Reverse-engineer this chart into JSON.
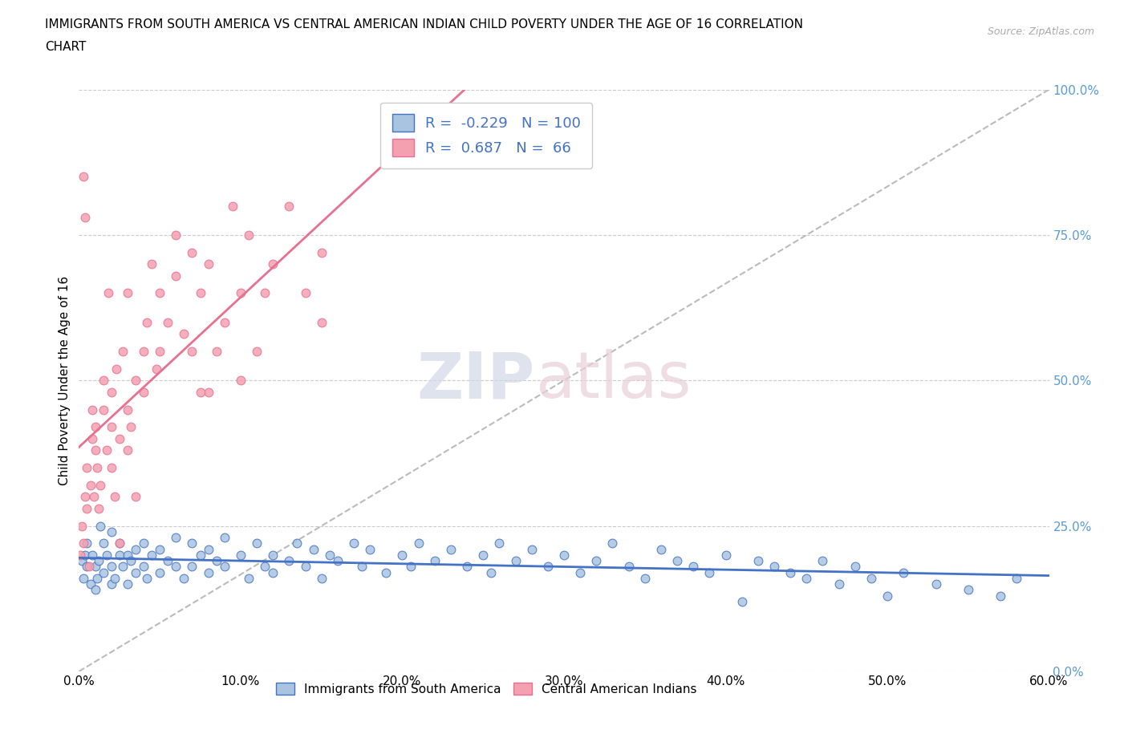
{
  "title_line1": "IMMIGRANTS FROM SOUTH AMERICA VS CENTRAL AMERICAN INDIAN CHILD POVERTY UNDER THE AGE OF 16 CORRELATION",
  "title_line2": "CHART",
  "source": "Source: ZipAtlas.com",
  "ylabel": "Child Poverty Under the Age of 16",
  "xlabel_ticks": [
    "0.0%",
    "10.0%",
    "20.0%",
    "30.0%",
    "40.0%",
    "50.0%",
    "60.0%"
  ],
  "xlabel_vals": [
    0,
    10,
    20,
    30,
    40,
    50,
    60
  ],
  "ytick_labels": [
    "0.0%",
    "25.0%",
    "50.0%",
    "75.0%",
    "100.0%"
  ],
  "ytick_vals": [
    0,
    25,
    50,
    75,
    100
  ],
  "xlim": [
    0,
    60
  ],
  "ylim": [
    0,
    100
  ],
  "blue_R": -0.229,
  "blue_N": 100,
  "pink_R": 0.687,
  "pink_N": 66,
  "blue_color": "#a8c4e0",
  "pink_color": "#f4a0b0",
  "blue_line_color": "#4472c4",
  "pink_line_color": "#e87090",
  "blue_scatter": [
    [
      0.2,
      19
    ],
    [
      0.3,
      16
    ],
    [
      0.4,
      20
    ],
    [
      0.5,
      22
    ],
    [
      0.5,
      18
    ],
    [
      0.7,
      15
    ],
    [
      0.8,
      20
    ],
    [
      1.0,
      14
    ],
    [
      1.0,
      18
    ],
    [
      1.1,
      16
    ],
    [
      1.2,
      19
    ],
    [
      1.3,
      25
    ],
    [
      1.5,
      22
    ],
    [
      1.5,
      17
    ],
    [
      1.7,
      20
    ],
    [
      2.0,
      15
    ],
    [
      2.0,
      18
    ],
    [
      2.0,
      24
    ],
    [
      2.2,
      16
    ],
    [
      2.5,
      20
    ],
    [
      2.5,
      22
    ],
    [
      2.7,
      18
    ],
    [
      3.0,
      15
    ],
    [
      3.0,
      20
    ],
    [
      3.2,
      19
    ],
    [
      3.5,
      21
    ],
    [
      3.5,
      17
    ],
    [
      4.0,
      18
    ],
    [
      4.0,
      22
    ],
    [
      4.2,
      16
    ],
    [
      4.5,
      20
    ],
    [
      5.0,
      17
    ],
    [
      5.0,
      21
    ],
    [
      5.5,
      19
    ],
    [
      6.0,
      18
    ],
    [
      6.0,
      23
    ],
    [
      6.5,
      16
    ],
    [
      7.0,
      22
    ],
    [
      7.0,
      18
    ],
    [
      7.5,
      20
    ],
    [
      8.0,
      17
    ],
    [
      8.0,
      21
    ],
    [
      8.5,
      19
    ],
    [
      9.0,
      18
    ],
    [
      9.0,
      23
    ],
    [
      10.0,
      20
    ],
    [
      10.5,
      16
    ],
    [
      11.0,
      22
    ],
    [
      11.5,
      18
    ],
    [
      12.0,
      20
    ],
    [
      12.0,
      17
    ],
    [
      13.0,
      19
    ],
    [
      13.5,
      22
    ],
    [
      14.0,
      18
    ],
    [
      14.5,
      21
    ],
    [
      15.0,
      16
    ],
    [
      15.5,
      20
    ],
    [
      16.0,
      19
    ],
    [
      17.0,
      22
    ],
    [
      17.5,
      18
    ],
    [
      18.0,
      21
    ],
    [
      19.0,
      17
    ],
    [
      20.0,
      20
    ],
    [
      20.5,
      18
    ],
    [
      21.0,
      22
    ],
    [
      22.0,
      19
    ],
    [
      23.0,
      21
    ],
    [
      24.0,
      18
    ],
    [
      25.0,
      20
    ],
    [
      25.5,
      17
    ],
    [
      26.0,
      22
    ],
    [
      27.0,
      19
    ],
    [
      28.0,
      21
    ],
    [
      29.0,
      18
    ],
    [
      30.0,
      20
    ],
    [
      31.0,
      17
    ],
    [
      32.0,
      19
    ],
    [
      33.0,
      22
    ],
    [
      34.0,
      18
    ],
    [
      35.0,
      16
    ],
    [
      36.0,
      21
    ],
    [
      37.0,
      19
    ],
    [
      38.0,
      18
    ],
    [
      39.0,
      17
    ],
    [
      40.0,
      20
    ],
    [
      41.0,
      12
    ],
    [
      42.0,
      19
    ],
    [
      43.0,
      18
    ],
    [
      44.0,
      17
    ],
    [
      45.0,
      16
    ],
    [
      46.0,
      19
    ],
    [
      47.0,
      15
    ],
    [
      48.0,
      18
    ],
    [
      49.0,
      16
    ],
    [
      50.0,
      13
    ],
    [
      51.0,
      17
    ],
    [
      53.0,
      15
    ],
    [
      55.0,
      14
    ],
    [
      57.0,
      13
    ],
    [
      58.0,
      16
    ]
  ],
  "pink_scatter": [
    [
      0.1,
      20
    ],
    [
      0.2,
      25
    ],
    [
      0.3,
      22
    ],
    [
      0.4,
      30
    ],
    [
      0.5,
      28
    ],
    [
      0.5,
      35
    ],
    [
      0.6,
      18
    ],
    [
      0.7,
      32
    ],
    [
      0.8,
      40
    ],
    [
      0.8,
      45
    ],
    [
      0.9,
      30
    ],
    [
      1.0,
      38
    ],
    [
      1.0,
      42
    ],
    [
      1.1,
      35
    ],
    [
      1.2,
      28
    ],
    [
      1.3,
      32
    ],
    [
      1.5,
      45
    ],
    [
      1.5,
      50
    ],
    [
      1.7,
      38
    ],
    [
      2.0,
      42
    ],
    [
      2.0,
      35
    ],
    [
      2.0,
      48
    ],
    [
      2.2,
      30
    ],
    [
      2.5,
      22
    ],
    [
      2.5,
      40
    ],
    [
      2.7,
      55
    ],
    [
      3.0,
      45
    ],
    [
      3.0,
      38
    ],
    [
      3.2,
      42
    ],
    [
      3.5,
      50
    ],
    [
      3.5,
      30
    ],
    [
      4.0,
      55
    ],
    [
      4.0,
      48
    ],
    [
      4.2,
      60
    ],
    [
      4.5,
      70
    ],
    [
      5.0,
      55
    ],
    [
      5.0,
      65
    ],
    [
      5.5,
      60
    ],
    [
      6.0,
      75
    ],
    [
      6.0,
      68
    ],
    [
      6.5,
      58
    ],
    [
      7.0,
      72
    ],
    [
      7.0,
      55
    ],
    [
      7.5,
      65
    ],
    [
      8.0,
      70
    ],
    [
      8.0,
      48
    ],
    [
      9.0,
      60
    ],
    [
      9.5,
      80
    ],
    [
      10.0,
      65
    ],
    [
      10.5,
      75
    ],
    [
      11.0,
      55
    ],
    [
      12.0,
      70
    ],
    [
      13.0,
      80
    ],
    [
      14.0,
      65
    ],
    [
      15.0,
      72
    ],
    [
      15.0,
      60
    ],
    [
      0.3,
      85
    ],
    [
      0.4,
      78
    ],
    [
      1.8,
      65
    ],
    [
      2.3,
      52
    ],
    [
      4.8,
      52
    ],
    [
      7.5,
      48
    ],
    [
      10.0,
      50
    ],
    [
      11.5,
      65
    ],
    [
      3.0,
      65
    ],
    [
      8.5,
      55
    ]
  ],
  "watermark_zip": "ZIP",
  "watermark_atlas": "atlas",
  "background_color": "#ffffff",
  "grid_color": "#cccccc",
  "title_fontsize": 11,
  "axis_label_fontsize": 11,
  "tick_fontsize": 11,
  "legend_fontsize": 13,
  "right_tick_color": "#5b9bd5",
  "legend_bottom_labels": [
    "Immigrants from South America",
    "Central American Indians"
  ]
}
